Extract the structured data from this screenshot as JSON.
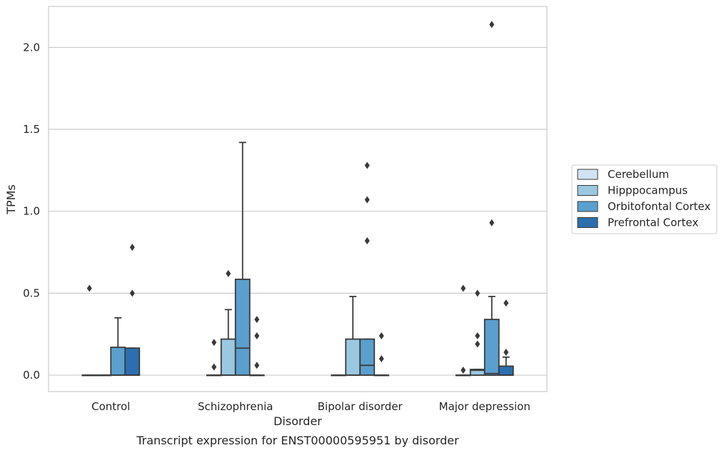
{
  "chart_data": {
    "type": "box",
    "title": "",
    "caption": "Transcript expression for ENST00000595951 by disorder",
    "xlabel": "Disorder",
    "ylabel": "TPMs",
    "ylim": [
      -0.1,
      2.25
    ],
    "yticks": [
      0.0,
      0.5,
      1.0,
      1.5,
      2.0
    ],
    "ytick_labels": [
      "0.0",
      "0.5",
      "1.0",
      "1.5",
      "2.0"
    ],
    "grid": "horizontal",
    "legend_position": "right",
    "categories": [
      "Control",
      "Schizophrenia",
      "Bipolar disorder",
      "Major depression"
    ],
    "series": [
      {
        "name": "Cerebellum",
        "color": "#d2e3f3",
        "boxes": [
          {
            "q1": 0.0,
            "median": 0.0,
            "q3": 0.0,
            "whisker_low": 0.0,
            "whisker_high": 0.0,
            "outliers": [
              0.53
            ]
          },
          {
            "q1": 0.0,
            "median": 0.0,
            "q3": 0.0,
            "whisker_low": 0.0,
            "whisker_high": 0.0,
            "outliers": [
              0.2,
              0.05
            ]
          },
          {
            "q1": 0.0,
            "median": 0.0,
            "q3": 0.0,
            "whisker_low": 0.0,
            "whisker_high": 0.0,
            "outliers": []
          },
          {
            "q1": 0.0,
            "median": 0.0,
            "q3": 0.0,
            "whisker_low": 0.0,
            "whisker_high": 0.0,
            "outliers": [
              0.53,
              0.03
            ]
          }
        ]
      },
      {
        "name": "Hipppocampus",
        "color": "#9ac8e0",
        "boxes": [
          {
            "q1": 0.0,
            "median": 0.0,
            "q3": 0.0,
            "whisker_low": 0.0,
            "whisker_high": 0.0,
            "outliers": []
          },
          {
            "q1": 0.0,
            "median": 0.0,
            "q3": 0.22,
            "whisker_low": 0.0,
            "whisker_high": 0.4,
            "outliers": [
              0.62
            ]
          },
          {
            "q1": 0.0,
            "median": 0.0,
            "q3": 0.22,
            "whisker_low": 0.0,
            "whisker_high": 0.48,
            "outliers": []
          },
          {
            "q1": 0.0,
            "median": 0.03,
            "q3": 0.035,
            "whisker_low": 0.0,
            "whisker_high": 0.035,
            "outliers": [
              0.5,
              0.24,
              0.19
            ]
          }
        ]
      },
      {
        "name": "Orbitofontal Cortex",
        "color": "#5a9fcd",
        "boxes": [
          {
            "q1": 0.0,
            "median": 0.0,
            "q3": 0.17,
            "whisker_low": 0.0,
            "whisker_high": 0.35,
            "outliers": []
          },
          {
            "q1": 0.0,
            "median": 0.165,
            "q3": 0.585,
            "whisker_low": 0.0,
            "whisker_high": 1.42,
            "outliers": []
          },
          {
            "q1": 0.0,
            "median": 0.06,
            "q3": 0.22,
            "whisker_low": 0.0,
            "whisker_high": 0.22,
            "outliers": [
              1.28,
              1.07,
              0.82
            ]
          },
          {
            "q1": 0.0,
            "median": 0.01,
            "q3": 0.34,
            "whisker_low": 0.0,
            "whisker_high": 0.48,
            "outliers": [
              2.14,
              0.93
            ]
          }
        ]
      },
      {
        "name": "Prefrontal Cortex",
        "color": "#2c6fae",
        "boxes": [
          {
            "q1": 0.0,
            "median": 0.0,
            "q3": 0.165,
            "whisker_low": 0.0,
            "whisker_high": 0.165,
            "outliers": [
              0.78,
              0.5
            ]
          },
          {
            "q1": 0.0,
            "median": 0.0,
            "q3": 0.0,
            "whisker_low": 0.0,
            "whisker_high": 0.0,
            "outliers": [
              0.34,
              0.24,
              0.06
            ]
          },
          {
            "q1": 0.0,
            "median": 0.0,
            "q3": 0.0,
            "whisker_low": 0.0,
            "whisker_high": 0.0,
            "outliers": [
              0.24,
              0.1
            ]
          },
          {
            "q1": 0.0,
            "median": 0.0,
            "q3": 0.055,
            "whisker_low": 0.0,
            "whisker_high": 0.11,
            "outliers": [
              0.44,
              0.14
            ]
          }
        ]
      }
    ]
  }
}
